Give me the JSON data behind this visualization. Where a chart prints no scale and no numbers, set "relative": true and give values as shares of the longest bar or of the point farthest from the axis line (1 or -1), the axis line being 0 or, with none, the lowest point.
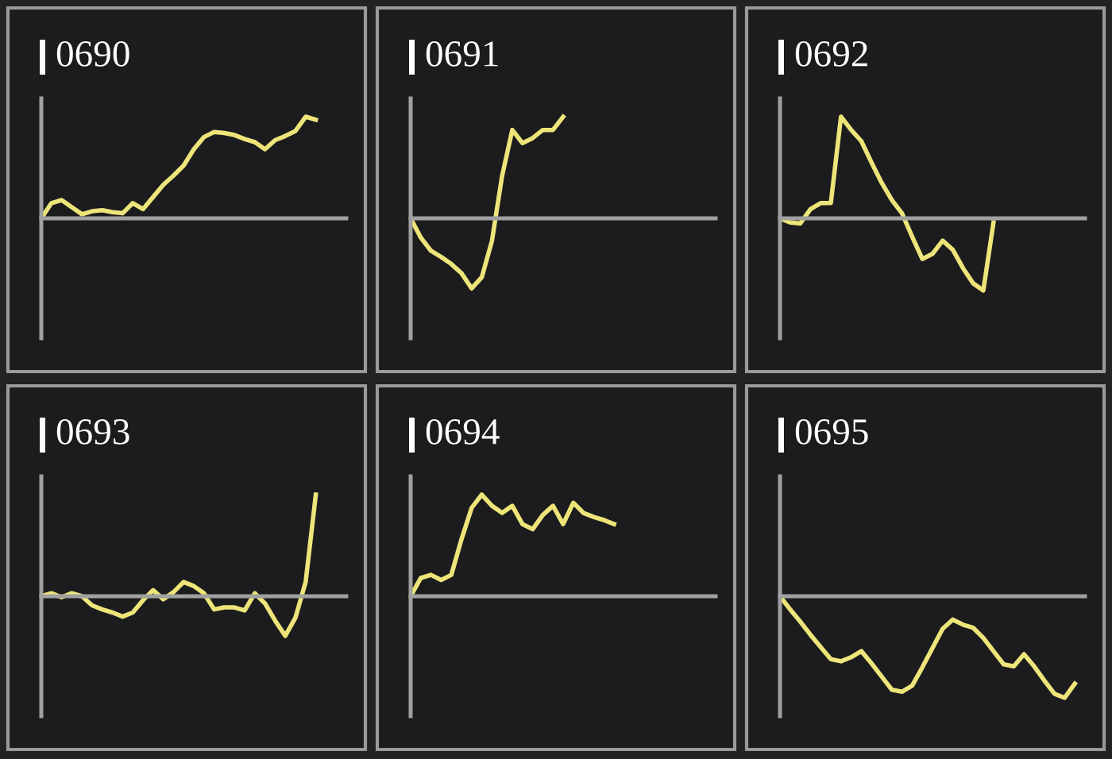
{
  "chart_data": [
    {
      "type": "line",
      "title": "0690",
      "relative": true,
      "categories": [
        null,
        null,
        null,
        null,
        null,
        null,
        null,
        null,
        null,
        null,
        null,
        null,
        null,
        null,
        null,
        null,
        null,
        null,
        null,
        null,
        null,
        null,
        null,
        null,
        null,
        null,
        null,
        null,
        null,
        null,
        null
      ],
      "series": [
        {
          "color": "#eee57a",
          "values": [
            0,
            0.15,
            0.18,
            0.11,
            0.04,
            0.07,
            0.08,
            0.06,
            0.05,
            0.15,
            0.09,
            0.21,
            0.33,
            0.42,
            0.52,
            0.68,
            0.8,
            0.85,
            0.84,
            0.82,
            0.78,
            0.75,
            0.68,
            0.77,
            0.81,
            0.86,
            1,
            0.97,
            null,
            null,
            null
          ]
        }
      ]
    },
    {
      "type": "line",
      "title": "0691",
      "relative": true,
      "categories": [
        null,
        null,
        null,
        null,
        null,
        null,
        null,
        null,
        null,
        null,
        null,
        null,
        null,
        null,
        null,
        null,
        null,
        null,
        null,
        null,
        null,
        null,
        null,
        null,
        null,
        null,
        null,
        null,
        null,
        null,
        null
      ],
      "series": [
        {
          "color": "#eee57a",
          "values": [
            0,
            -0.19,
            -0.32,
            -0.38,
            -0.45,
            -0.54,
            -0.69,
            -0.58,
            -0.22,
            0.42,
            0.87,
            0.74,
            0.79,
            0.87,
            0.87,
            1,
            null,
            null,
            null,
            null,
            null,
            null,
            null,
            null,
            null,
            null,
            null,
            null,
            null,
            null,
            null
          ]
        }
      ]
    },
    {
      "type": "line",
      "title": "0692",
      "relative": true,
      "categories": [
        null,
        null,
        null,
        null,
        null,
        null,
        null,
        null,
        null,
        null,
        null,
        null,
        null,
        null,
        null,
        null,
        null,
        null,
        null,
        null,
        null,
        null,
        null,
        null,
        null,
        null,
        null,
        null,
        null,
        null,
        null
      ],
      "series": [
        {
          "color": "#eee57a",
          "values": [
            0,
            -0.04,
            -0.05,
            0.09,
            0.15,
            0.15,
            1,
            0.87,
            0.76,
            0.55,
            0.35,
            0.18,
            0.05,
            -0.18,
            -0.4,
            -0.35,
            -0.22,
            -0.31,
            -0.49,
            -0.64,
            -0.71,
            -0.04,
            null,
            null,
            null,
            null,
            null,
            null,
            null,
            null,
            null
          ]
        }
      ]
    },
    {
      "type": "line",
      "title": "0693",
      "relative": true,
      "categories": [
        null,
        null,
        null,
        null,
        null,
        null,
        null,
        null,
        null,
        null,
        null,
        null,
        null,
        null,
        null,
        null,
        null,
        null,
        null,
        null,
        null,
        null,
        null,
        null,
        null,
        null,
        null,
        null,
        null,
        null,
        null
      ],
      "series": [
        {
          "color": "#eee57a",
          "values": [
            0,
            0.03,
            -0.01,
            0.03,
            0,
            -0.09,
            -0.13,
            -0.16,
            -0.2,
            -0.16,
            -0.04,
            0.06,
            -0.03,
            0.04,
            0.14,
            0.1,
            0.03,
            -0.13,
            -0.11,
            -0.11,
            -0.14,
            0.03,
            -0.07,
            -0.24,
            -0.39,
            -0.21,
            0.14,
            1,
            null,
            null,
            null
          ]
        }
      ]
    },
    {
      "type": "line",
      "title": "0694",
      "relative": true,
      "categories": [
        null,
        null,
        null,
        null,
        null,
        null,
        null,
        null,
        null,
        null,
        null,
        null,
        null,
        null,
        null,
        null,
        null,
        null,
        null,
        null,
        null,
        null,
        null,
        null,
        null,
        null,
        null,
        null,
        null,
        null,
        null
      ],
      "series": [
        {
          "color": "#eee57a",
          "values": [
            0,
            0.18,
            0.21,
            0.16,
            0.21,
            0.56,
            0.87,
            1,
            0.89,
            0.82,
            0.89,
            0.71,
            0.66,
            0.8,
            0.89,
            0.71,
            0.92,
            0.82,
            0.78,
            0.75,
            0.71,
            null,
            null,
            null,
            null,
            null,
            null,
            null,
            null,
            null,
            null
          ]
        }
      ]
    },
    {
      "type": "line",
      "title": "0695",
      "relative": true,
      "categories": [
        null,
        null,
        null,
        null,
        null,
        null,
        null,
        null,
        null,
        null,
        null,
        null,
        null,
        null,
        null,
        null,
        null,
        null,
        null,
        null,
        null,
        null,
        null,
        null,
        null,
        null,
        null,
        null,
        null,
        null,
        null
      ],
      "series": [
        {
          "color": "#eee57a",
          "values": [
            0,
            -0.13,
            -0.25,
            -0.38,
            -0.5,
            -0.62,
            -0.64,
            -0.6,
            -0.54,
            -0.66,
            -0.79,
            -0.92,
            -0.94,
            -0.88,
            -0.7,
            -0.51,
            -0.32,
            -0.23,
            -0.28,
            -0.31,
            -0.41,
            -0.54,
            -0.67,
            -0.69,
            -0.57,
            -0.69,
            -0.83,
            -0.96,
            -1,
            -0.86,
            null
          ]
        }
      ]
    }
  ]
}
